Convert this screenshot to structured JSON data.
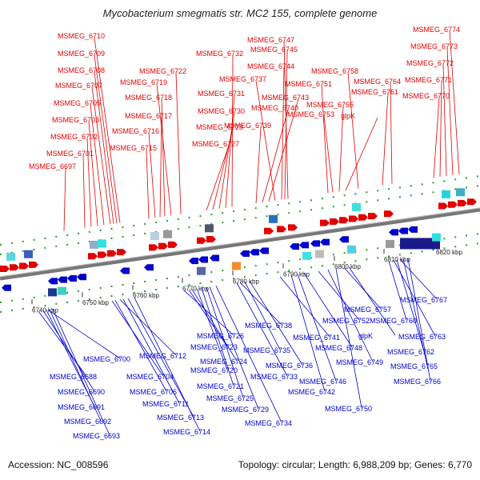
{
  "header": {
    "title": "Mycobacterium smegmatis str. MC2 155, complete genome"
  },
  "footer": {
    "accession": "Accession: NC_008596",
    "summary": "Topology: circular; Length: 6,988,209 bp; Genes: 6,770"
  },
  "colors": {
    "top_genes": "#e00000",
    "bottom_genes": "#0000cc",
    "backbone": "#888888",
    "orf_ticks": "#2a9a2a"
  },
  "ticks": [
    {
      "label": "6740 kbp"
    },
    {
      "label": "6750 kbp"
    },
    {
      "label": "6760 kbp"
    },
    {
      "label": "6770 kbp"
    },
    {
      "label": "6780 kbp"
    },
    {
      "label": "6790 kbp"
    },
    {
      "label": "6800 kbp"
    },
    {
      "label": "6810 kbp"
    },
    {
      "label": "6820 kbp"
    }
  ],
  "top_labels": [
    "MSMEG_6710",
    "MSMEG_6709",
    "MSMEG_6708",
    "MSMEG_6707",
    "MSMEG_6705",
    "MSMEG_6703",
    "MSMEG_6702",
    "MSMEG_6701",
    "MSMEG_6697",
    "MSMEG_6722",
    "MSMEG_6719",
    "MSMEG_6718",
    "MSMEG_6717",
    "MSMEG_6716",
    "MSMEG_6715",
    "MSMEG_6732",
    "MSMEG_6731",
    "MSMEG_6730",
    "MSMEG_6728",
    "MSMEG_6727",
    "MSMEG_6747",
    "MSMEG_6745",
    "MSMEG_6744",
    "MSMEG_6737",
    "MSMEG_6743",
    "MSMEG_6740",
    "MSMEG_6739",
    "MSMEG_6751",
    "MSMEG_6758",
    "MSMEG_6755",
    "MSMEG_6753",
    "MSMEG_6764",
    "MSMEG_6761",
    "glpK",
    "MSMEG_6774",
    "MSMEG_6773",
    "MSMEG_6772",
    "MSMEG_6771",
    "MSMEG_6770"
  ],
  "bottom_labels": [
    "MSMEG_6700",
    "MSMEG_6688",
    "MSMEG_6690",
    "MSMEG_6691",
    "MSMEG_6692",
    "MSMEG_6693",
    "MSMEG_6712",
    "MSMEG_6704",
    "MSMEG_6706",
    "MSMEG_6711",
    "MSMEG_6713",
    "MSMEG_6714",
    "MSMEG_6726",
    "MSMEG_6723",
    "MSMEG_6724",
    "MSMEG_6720",
    "MSMEG_6721",
    "MSMEG_6725",
    "MSMEG_6729",
    "MSMEG_6734",
    "MSMEG_6738",
    "MSMEG_6735",
    "MSMEG_6741",
    "MSMEG_6736",
    "MSMEG_6733",
    "MSMEG_6748",
    "MSMEG_6746",
    "MSMEG_6742",
    "MSMEG_6752",
    "MSMEG_6749",
    "MSMEG_6750",
    "MSMEG_6757",
    "glpK",
    "MSMEG_6767",
    "MSMEG_6760",
    "MSMEG_6763",
    "MSMEG_6762",
    "MSMEG_6765",
    "MSMEG_6766"
  ]
}
